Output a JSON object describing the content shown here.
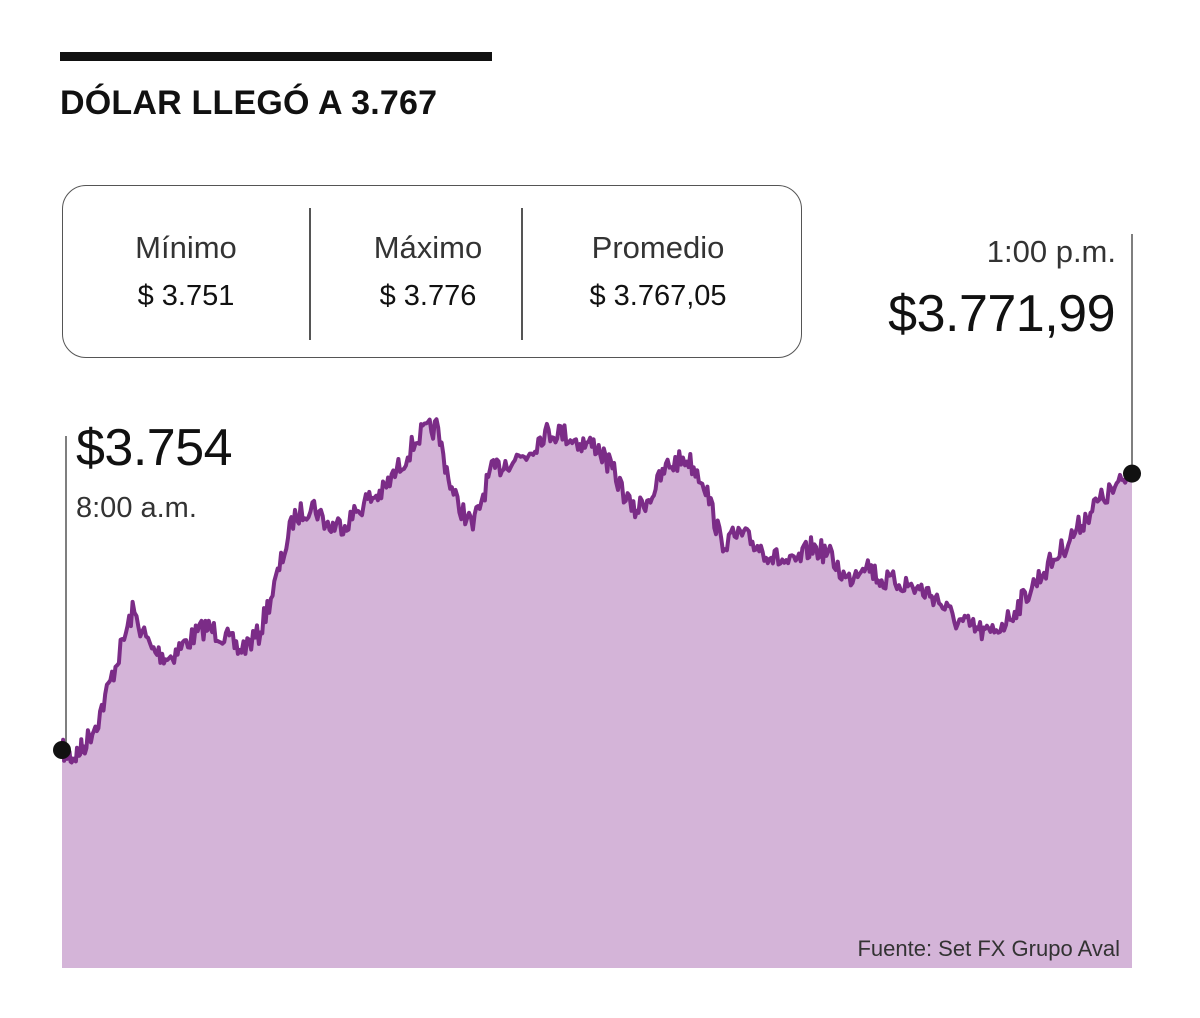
{
  "title": "DÓLAR LLEGÓ A 3.767",
  "stats": {
    "min_label": "Mínimo",
    "min_value": "$ 3.751",
    "max_label": "Máximo",
    "max_value": "$ 3.776",
    "avg_label": "Promedio",
    "avg_value": "$ 3.767,05"
  },
  "annotations": {
    "start_value": "$3.754",
    "start_time": "8:00 a.m.",
    "end_time": "1:00 p.m.",
    "end_value": "$3.771,99"
  },
  "source": "Fuente: Set FX Grupo Aval",
  "colors": {
    "area_fill": "#d4b4d8",
    "line": "#7b2c87",
    "marker": "#111111"
  },
  "chart_data": {
    "type": "area",
    "title": "DÓLAR LLEGÓ A 3.767",
    "xlabel": "",
    "ylabel": "",
    "x_start": "8:00 a.m.",
    "x_end": "1:00 p.m.",
    "x_unit": "hours after 8:00 a.m.",
    "ylim": [
      3740,
      3780
    ],
    "grid": false,
    "legend": "none",
    "series": [
      {
        "x": [
          0,
          0.05,
          0.1,
          0.17,
          0.25,
          0.33,
          0.42,
          0.5,
          0.58,
          0.67,
          0.75,
          0.83,
          0.92,
          1.0,
          1.08,
          1.17,
          1.25,
          1.33,
          1.42,
          1.5,
          1.58,
          1.67,
          1.75,
          1.83,
          1.92,
          2.0,
          2.08,
          2.17,
          2.25,
          2.33,
          2.42,
          2.5,
          2.58,
          2.67,
          2.75,
          2.83,
          2.92,
          3.0,
          3.08,
          3.17,
          3.25,
          3.33,
          3.42,
          3.5,
          3.58,
          3.67,
          3.75,
          3.83,
          3.92,
          4.0,
          4.08,
          4.17,
          4.25,
          4.33,
          4.42,
          4.5,
          4.58,
          4.67,
          4.75,
          4.83,
          4.92,
          5.0
        ],
        "values": [
          3754.0,
          3753.5,
          3754.2,
          3756.0,
          3759.5,
          3763.0,
          3760.5,
          3760.0,
          3761.0,
          3762.0,
          3761.5,
          3760.5,
          3761.5,
          3765.0,
          3769.0,
          3770.0,
          3768.5,
          3768.8,
          3770.2,
          3770.8,
          3772.5,
          3774.5,
          3775.0,
          3770.5,
          3768.5,
          3772.0,
          3772.8,
          3773.2,
          3774.6,
          3774.7,
          3774.0,
          3773.8,
          3772.0,
          3769.5,
          3770.5,
          3772.5,
          3773.0,
          3771.5,
          3767.5,
          3768.0,
          3767.3,
          3766.5,
          3766.0,
          3767.2,
          3766.8,
          3765.0,
          3766.3,
          3765.0,
          3764.9,
          3764.5,
          3764.0,
          3762.5,
          3762.0,
          3761.5,
          3762.5,
          3764.0,
          3765.5,
          3767.0,
          3768.5,
          3770.0,
          3771.0,
          3771.99
        ]
      }
    ]
  }
}
